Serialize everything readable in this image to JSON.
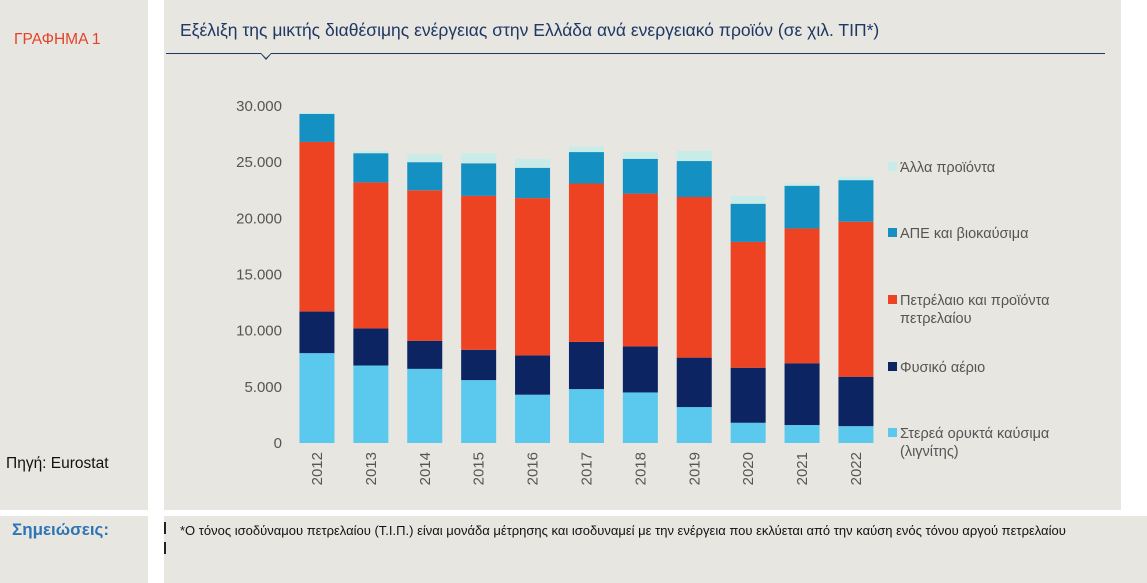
{
  "figure": {
    "label": "ΓΡΑΦΗΜΑ 1",
    "title": "Εξέλιξη της μικτής διαθέσιμης ενέργειας στην Ελλάδα ανά ενεργειακό προϊόν (σε χιλ. ΤΙΠ*)",
    "source": "Πηγή: Eurostat"
  },
  "notes": {
    "label": "Σημειώσεις:",
    "text": "*Ο τόνος ισοδύναμου πετρελαίου (Τ.Ι.Π.) είναι μονάδα μέτρησης και ισοδυναμεί με την ενέργεια που εκλύεται από την καύση ενός τόνου αργού πετρελαίου"
  },
  "chart_data": {
    "type": "bar",
    "stacked": true,
    "categories": [
      "2012",
      "2013",
      "2014",
      "2015",
      "2016",
      "2017",
      "2018",
      "2019",
      "2020",
      "2021",
      "2022"
    ],
    "ylim": [
      0,
      30000
    ],
    "yticks": [
      "0",
      "5.000",
      "10.000",
      "15.000",
      "20.000",
      "25.000",
      "30.000"
    ],
    "grid": false,
    "legend_position": "right",
    "series": [
      {
        "name": "Στερεά ορυκτά καύσιμα (λιγνίτης)",
        "color": "#5bc8ee",
        "values": [
          8000,
          6900,
          6600,
          5600,
          4300,
          4800,
          4500,
          3200,
          1800,
          1600,
          1500
        ]
      },
      {
        "name": "Φυσικό αέριο",
        "color": "#0c2461",
        "values": [
          3700,
          3300,
          2500,
          2700,
          3500,
          4200,
          4100,
          4400,
          4900,
          5500,
          4400
        ]
      },
      {
        "name": "Πετρέλαιο και προϊόντα πετρελαίου",
        "color": "#ee4322",
        "values": [
          15100,
          13000,
          13400,
          13700,
          14000,
          14100,
          13600,
          14300,
          11200,
          12000,
          13800
        ]
      },
      {
        "name": "ΑΠΕ και βιοκαύσιμα",
        "color": "#1490c3",
        "values": [
          2500,
          2600,
          2500,
          2900,
          2700,
          2800,
          3100,
          3200,
          3400,
          3800,
          3700
        ]
      },
      {
        "name": "Άλλα προϊόντα",
        "color": "#c9ece8",
        "values": [
          100,
          200,
          700,
          900,
          800,
          500,
          600,
          900,
          700,
          200,
          300
        ]
      }
    ]
  }
}
